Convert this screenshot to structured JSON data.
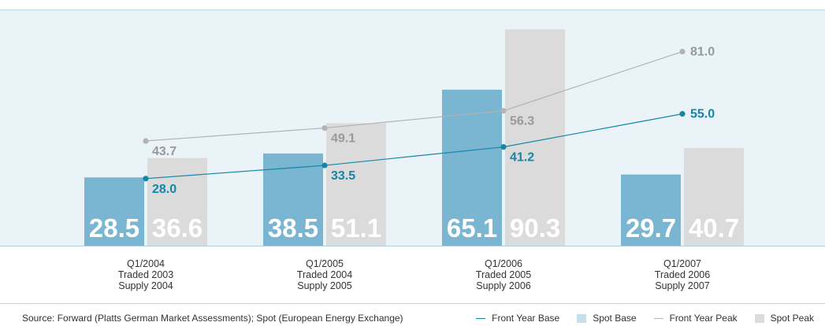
{
  "chart_data": {
    "type": "bar",
    "categories": [
      [
        "Q1/2004",
        "Traded 2003",
        "Supply 2004"
      ],
      [
        "Q1/2005",
        "Traded 2004",
        "Supply 2005"
      ],
      [
        "Q1/2006",
        "Traded 2005",
        "Supply 2006"
      ],
      [
        "Q1/2007",
        "Traded 2006",
        "Supply 2007"
      ]
    ],
    "series": [
      {
        "name": "Spot Base",
        "kind": "bar",
        "color": "#7ab5d2",
        "values": [
          28.5,
          38.5,
          65.1,
          29.7
        ]
      },
      {
        "name": "Spot Peak",
        "kind": "bar",
        "color": "#dbdbdb",
        "values": [
          36.6,
          51.1,
          90.3,
          40.7
        ]
      },
      {
        "name": "Front Year Base",
        "kind": "line",
        "color": "#1486a8",
        "values": [
          28.0,
          33.5,
          41.2,
          55.0
        ]
      },
      {
        "name": "Front Year Peak",
        "kind": "line",
        "color": "#b3b3b3",
        "values": [
          43.7,
          49.1,
          56.3,
          81.0
        ]
      }
    ],
    "ylim": [
      0,
      100
    ],
    "legend_position": "bottom-right"
  },
  "footer": {
    "source": "Source: Forward (Platts German Market Assessments); Spot (European Energy Exchange)"
  },
  "legend": [
    {
      "label": "Front Year Base",
      "swatch": "line",
      "color": "#1486a8"
    },
    {
      "label": "Spot Base",
      "swatch": "box",
      "color": "#c5dfec"
    },
    {
      "label": "Front Year Peak",
      "swatch": "line",
      "color": "#b3b3b3"
    },
    {
      "label": "Spot Peak",
      "swatch": "box",
      "color": "#dbdbdb"
    }
  ]
}
